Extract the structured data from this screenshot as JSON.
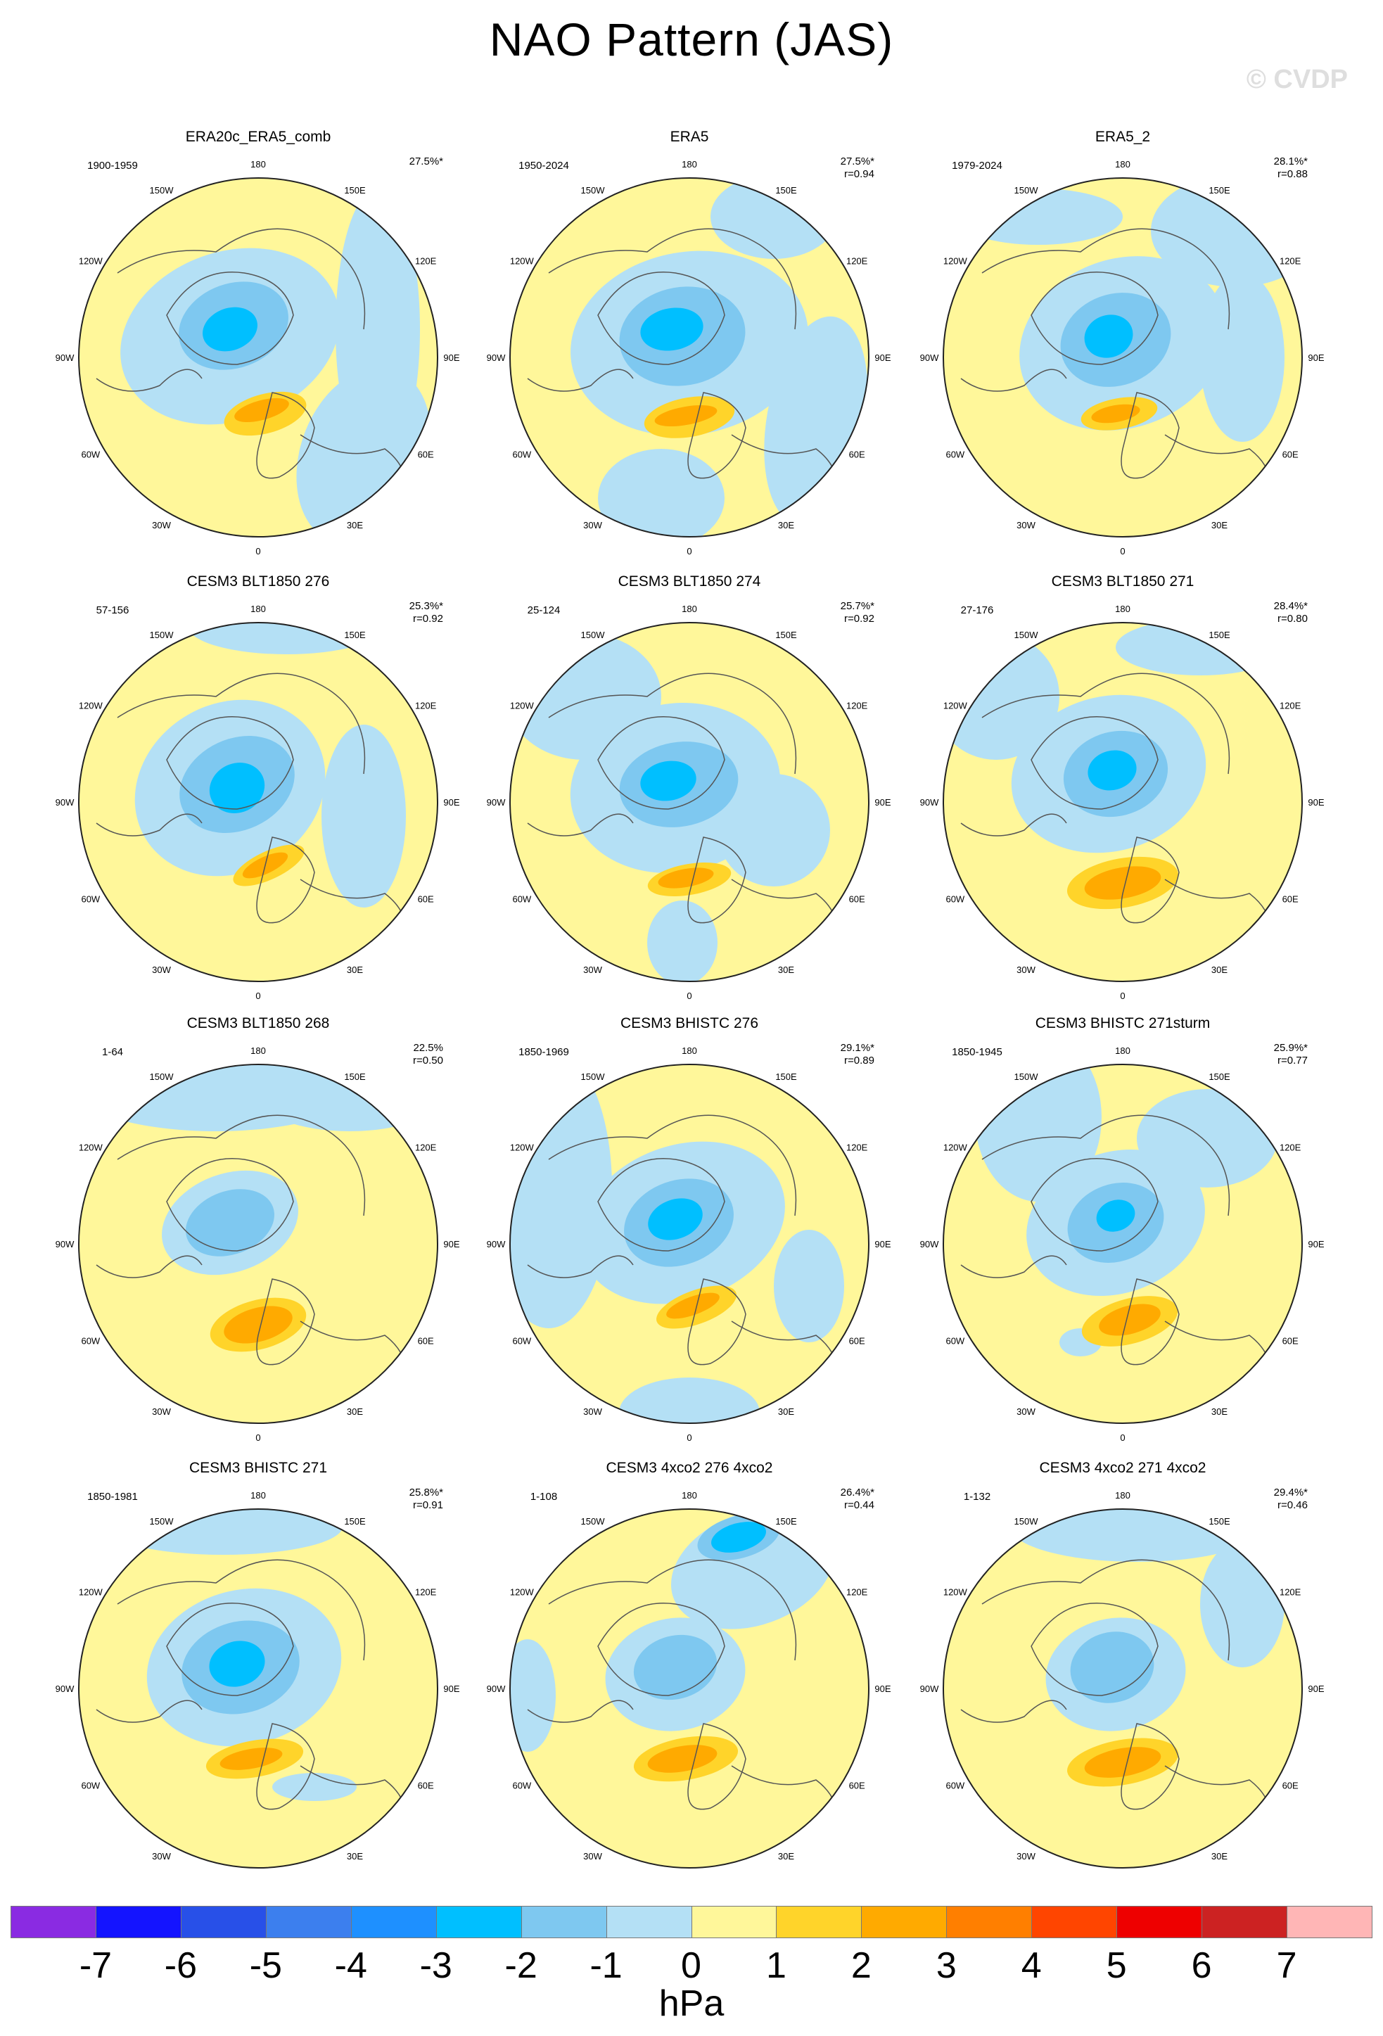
{
  "title": "NAO Pattern (JAS)",
  "watermark": "© CVDP",
  "colors": {
    "positive_light": "#FFF79A",
    "negative_light": "#B4E0F5",
    "map_background": "#FFF79A",
    "coast": "#555555",
    "frame": "#222222"
  },
  "chart_data": {
    "type": "heatmap",
    "projection": "north-polar-stereographic",
    "units": "hPa",
    "longitude_labels": [
      "180",
      "150E",
      "120E",
      "90E",
      "60E",
      "30E",
      "0",
      "30W",
      "60W",
      "90W",
      "120W",
      "150W"
    ],
    "panels": [
      {
        "title": "ERA20c_ERA5_comb",
        "period": "1900-1959",
        "pct_var": "27.5%*",
        "r": ""
      },
      {
        "title": "ERA5",
        "period": "1950-2024",
        "pct_var": "27.5%*",
        "r": "r=0.94"
      },
      {
        "title": "ERA5_2",
        "period": "1979-2024",
        "pct_var": "28.1%*",
        "r": "r=0.88"
      },
      {
        "title": "CESM3 BLT1850 276",
        "period": "57-156",
        "pct_var": "25.3%*",
        "r": "r=0.92"
      },
      {
        "title": "CESM3 BLT1850 274",
        "period": "25-124",
        "pct_var": "25.7%*",
        "r": "r=0.92"
      },
      {
        "title": "CESM3 BLT1850 271",
        "period": "27-176",
        "pct_var": "28.4%*",
        "r": "r=0.80"
      },
      {
        "title": "CESM3 BLT1850 268",
        "period": "1-64",
        "pct_var": "22.5%",
        "r": "r=0.50"
      },
      {
        "title": "CESM3 BHISTC 276",
        "period": "1850-1969",
        "pct_var": "29.1%*",
        "r": "r=0.89"
      },
      {
        "title": "CESM3 BHISTC 271sturm",
        "period": "1850-1945",
        "pct_var": "25.9%*",
        "r": "r=0.77"
      },
      {
        "title": "CESM3 BHISTC 271",
        "period": "1850-1981",
        "pct_var": "25.8%*",
        "r": "r=0.91"
      },
      {
        "title": "CESM3 4xco2 276 4xco2",
        "period": "1-108",
        "pct_var": "26.4%*",
        "r": "r=0.44"
      },
      {
        "title": "CESM3 4xco2 271 4xco2",
        "period": "1-132",
        "pct_var": "29.4%*",
        "r": "r=0.46"
      }
    ],
    "colorbar": {
      "labels": [
        "-7",
        "-6",
        "-5",
        "-4",
        "-3",
        "-2",
        "-1",
        "0",
        "1",
        "2",
        "3",
        "4",
        "5",
        "6",
        "7"
      ],
      "colors": [
        "#8A2BE2",
        "#1414FF",
        "#2850E8",
        "#3C7FEE",
        "#1E90FF",
        "#00BFFF",
        "#7EC8F0",
        "#B4E0F5",
        "#FFF79A",
        "#FFD42A",
        "#FFAA00",
        "#FF7F00",
        "#FF4500",
        "#EE0000",
        "#CC2222",
        "#FFB6B6"
      ],
      "units": "hPa"
    }
  }
}
